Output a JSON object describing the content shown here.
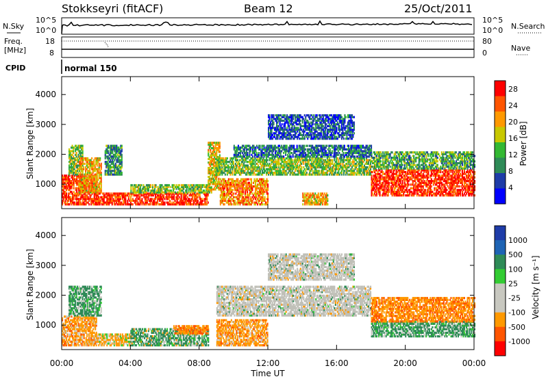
{
  "header": {
    "station": "Stokkseyri (fitACF)",
    "beam": "Beam 12",
    "date": "25/Oct/2011"
  },
  "side_labels": {
    "nsky": "N.Sky",
    "freq": "Freq.",
    "freq_unit": "[MHz]",
    "cpid": "CPID",
    "nsearch": "N.Search",
    "nave": "Nave",
    "cpid_value": "normal 150"
  },
  "strip_ticks": {
    "nsky_top": "10^5",
    "nsky_bottom": "10^0",
    "freq_top": "18",
    "freq_bottom": "8",
    "nave_top": "80",
    "nave_bottom": "0"
  },
  "colors": {
    "power_scale": [
      "#0000ff",
      "#1e3ca8",
      "#2e8b57",
      "#33b833",
      "#c8c800",
      "#ff9900",
      "#ff5500",
      "#ff0000"
    ],
    "velocity_scale": [
      "#ff0000",
      "#ff5500",
      "#ff9900",
      "#c8c8c0",
      "#c8c8c0",
      "#33cc33",
      "#2e8b57",
      "#1e64b4",
      "#1e3ca8"
    ],
    "ground_scatter": "#c0c0b8"
  },
  "chart_data": [
    {
      "type": "heatmap",
      "name": "power",
      "ylabel": "Slant Range [km]",
      "xlabel": "",
      "x_ticks": [
        "00:00",
        "04:00",
        "08:00",
        "12:00",
        "16:00",
        "20:00",
        "00:00"
      ],
      "x_range_hours": [
        0,
        24
      ],
      "y_ticks": [
        "1000",
        "2000",
        "3000",
        "4000"
      ],
      "ylim": [
        180,
        4600
      ],
      "colorbar_label": "Power [dB]",
      "colorbar_ticks": [
        "4",
        "8",
        "12",
        "16",
        "20",
        "24",
        "28"
      ],
      "colorbar_range": [
        0,
        30
      ],
      "regions": [
        {
          "t": [
            0.0,
            2.0
          ],
          "r": [
            300,
            1300
          ],
          "level": 26
        },
        {
          "t": [
            0.4,
            1.2
          ],
          "r": [
            1300,
            2300
          ],
          "level": 14
        },
        {
          "t": [
            1.0,
            2.3
          ],
          "r": [
            700,
            1900
          ],
          "level": 20
        },
        {
          "t": [
            2.5,
            3.5
          ],
          "r": [
            1300,
            2300
          ],
          "level": 10
        },
        {
          "t": [
            2.0,
            8.5
          ],
          "r": [
            300,
            700
          ],
          "level": 27
        },
        {
          "t": [
            4.0,
            8.7
          ],
          "r": [
            700,
            1000
          ],
          "level": 14
        },
        {
          "t": [
            8.5,
            9.2
          ],
          "r": [
            800,
            2400
          ],
          "level": 18
        },
        {
          "t": [
            9.2,
            12.0
          ],
          "r": [
            300,
            1200
          ],
          "level": 22
        },
        {
          "t": [
            9.0,
            18.0
          ],
          "r": [
            1300,
            1900
          ],
          "level": 14
        },
        {
          "t": [
            10.0,
            18.0
          ],
          "r": [
            1900,
            2300
          ],
          "level": 8
        },
        {
          "t": [
            12.0,
            17.0
          ],
          "r": [
            2500,
            3300
          ],
          "level": 6
        },
        {
          "t": [
            14.0,
            15.5
          ],
          "r": [
            300,
            700
          ],
          "level": 20
        },
        {
          "t": [
            18.0,
            24.0
          ],
          "r": [
            600,
            1500
          ],
          "level": 27
        },
        {
          "t": [
            18.0,
            24.0
          ],
          "r": [
            1500,
            2100
          ],
          "level": 12
        }
      ]
    },
    {
      "type": "heatmap",
      "name": "velocity",
      "ylabel": "Slant Range [km]",
      "xlabel": "Time UT",
      "x_ticks": [
        "00:00",
        "04:00",
        "08:00",
        "12:00",
        "16:00",
        "20:00",
        "00:00"
      ],
      "x_range_hours": [
        0,
        24
      ],
      "y_ticks": [
        "1000",
        "2000",
        "3000",
        "4000"
      ],
      "ylim": [
        180,
        4600
      ],
      "colorbar_label": "Velocity [m s⁻¹]",
      "colorbar_ticks": [
        "1000",
        "500",
        "100",
        "25",
        "-25",
        "-100",
        "-500",
        "-1000"
      ],
      "regions": [
        {
          "t": [
            0.0,
            2.0
          ],
          "r": [
            300,
            1300
          ],
          "vel": -300
        },
        {
          "t": [
            0.4,
            2.3
          ],
          "r": [
            1300,
            2300
          ],
          "vel": 200
        },
        {
          "t": [
            2.0,
            4.0
          ],
          "r": [
            300,
            700
          ],
          "vel": -200
        },
        {
          "t": [
            4.0,
            8.5
          ],
          "r": [
            300,
            900
          ],
          "vel": 150
        },
        {
          "t": [
            6.5,
            8.5
          ],
          "r": [
            700,
            1000
          ],
          "vel": -400
        },
        {
          "t": [
            9.0,
            12.0
          ],
          "r": [
            300,
            1200
          ],
          "vel": -300
        },
        {
          "t": [
            9.0,
            18.0
          ],
          "r": [
            1300,
            2300
          ],
          "vel": 0
        },
        {
          "t": [
            12.0,
            17.0
          ],
          "r": [
            2500,
            3400
          ],
          "vel": 0
        },
        {
          "t": [
            18.0,
            24.0
          ],
          "r": [
            600,
            1100
          ],
          "vel": 200
        },
        {
          "t": [
            18.0,
            24.0
          ],
          "r": [
            1100,
            1900
          ],
          "vel": -400
        }
      ]
    }
  ]
}
